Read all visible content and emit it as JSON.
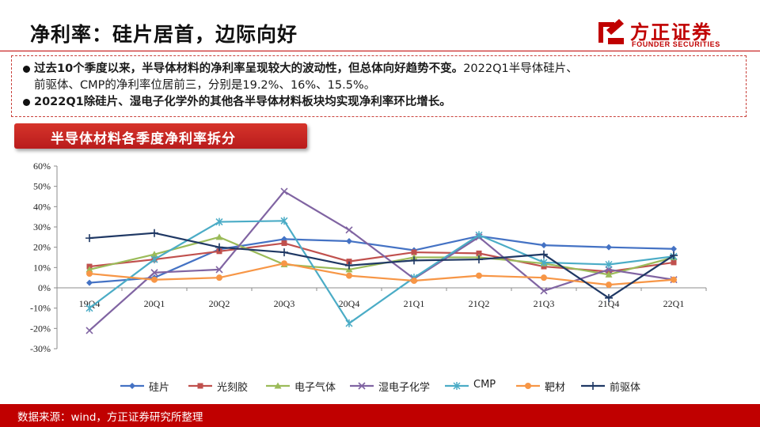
{
  "header": {
    "title": "净利率：硅片居首，边际向好",
    "logo_cn": "方正证券",
    "logo_en": "FOUNDER SECURITIES"
  },
  "summary": {
    "bullet1_bold": "过去10个季度以来，半导体材料的净利率呈现较大的波动性，但总体向好趋势不变。",
    "bullet1_line1_rest": "2022Q1半导体硅片、",
    "bullet1_line2": "前驱体、CMP的净利率位居前三，分别是19.2%、16%、15.5%。",
    "bullet2_bold": "2022Q1除硅片、湿电子化学外的其他各半导体材料板块均实现净利率环比增长。"
  },
  "section": {
    "banner_title": "半导体材料各季度净利率拆分"
  },
  "chart_data": {
    "type": "line",
    "title": "",
    "xlabel": "",
    "ylabel": "",
    "categories": [
      "19Q4",
      "20Q1",
      "20Q2",
      "20Q3",
      "20Q4",
      "21Q1",
      "21Q2",
      "21Q3",
      "21Q4",
      "22Q1"
    ],
    "ylim": [
      -30,
      60
    ],
    "yticks": [
      -30,
      -20,
      -10,
      0,
      10,
      20,
      30,
      40,
      50,
      60
    ],
    "ytick_labels": [
      "-30%",
      "-20%",
      "-10%",
      "0%",
      "10%",
      "20%",
      "30%",
      "40%",
      "50%",
      "60%"
    ],
    "grid": false,
    "legend_position": "bottom",
    "series": [
      {
        "name": "硅片",
        "color": "#4472c4",
        "marker": "diamond",
        "values": [
          2.5,
          5,
          19,
          24,
          23,
          18.5,
          25.5,
          21,
          20,
          19.2
        ]
      },
      {
        "name": "光刻胶",
        "color": "#c0504d",
        "marker": "square",
        "values": [
          10.5,
          14,
          18,
          22,
          13,
          17.5,
          17,
          10.5,
          8,
          12.5
        ]
      },
      {
        "name": "电子气体",
        "color": "#9bbb59",
        "marker": "triangle",
        "values": [
          9,
          16.5,
          25,
          11.5,
          9,
          15,
          15,
          12,
          6.5,
          15
        ]
      },
      {
        "name": "湿电子化学",
        "color": "#8064a2",
        "marker": "x",
        "values": [
          -21,
          7.5,
          9,
          47.5,
          28.5,
          4.5,
          25,
          -1.5,
          9,
          4
        ]
      },
      {
        "name": "CMP",
        "color": "#4bacc6",
        "marker": "star",
        "values": [
          -10,
          14,
          32.5,
          33,
          -17.5,
          5,
          26,
          12.5,
          11.5,
          15.5
        ]
      },
      {
        "name": "靶材",
        "color": "#f79646",
        "marker": "circle",
        "values": [
          7,
          4,
          5,
          12,
          6,
          3.5,
          6,
          5,
          1.5,
          4
        ]
      },
      {
        "name": "前驱体",
        "color": "#1f3864",
        "marker": "plus",
        "values": [
          24.5,
          27,
          20,
          17.5,
          11,
          13.5,
          14,
          16.5,
          -5,
          16
        ]
      }
    ]
  },
  "footer": {
    "source": "数据来源：wind，方正证券研究所整理"
  }
}
